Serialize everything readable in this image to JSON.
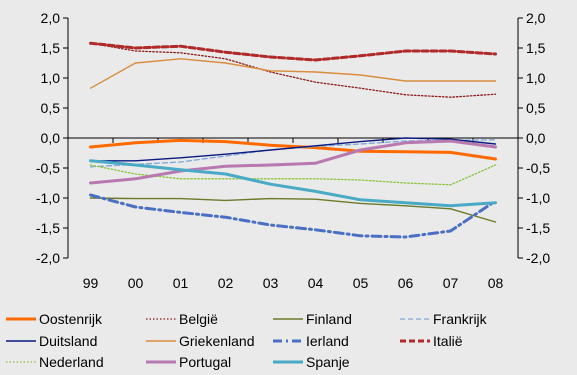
{
  "chart_data": {
    "type": "line",
    "title": "",
    "xlabel": "",
    "ylabel": "",
    "categories": [
      "99",
      "00",
      "01",
      "02",
      "03",
      "04",
      "05",
      "06",
      "07",
      "08"
    ],
    "ylim": [
      -2.0,
      2.0
    ],
    "yticks": [
      "2,0",
      "1,5",
      "1,0",
      "0,5",
      "0,0",
      "-0,5",
      "-1,0",
      "-1,5",
      "-2,0"
    ],
    "ytick_values": [
      2.0,
      1.5,
      1.0,
      0.5,
      0.0,
      -0.5,
      -1.0,
      -1.5,
      -2.0
    ],
    "grid": false,
    "legend_position": "bottom",
    "series": [
      {
        "name": "Oostenrijk",
        "color": "#ff6a00",
        "style": "solid-thick",
        "values": [
          -0.15,
          -0.08,
          -0.04,
          -0.06,
          -0.12,
          -0.16,
          -0.22,
          -0.23,
          -0.24,
          -0.35
        ]
      },
      {
        "name": "België",
        "color": "#8b1a1a",
        "style": "dotted",
        "values": [
          1.58,
          1.45,
          1.42,
          1.32,
          1.1,
          0.93,
          0.83,
          0.72,
          0.68,
          0.73
        ]
      },
      {
        "name": "Finland",
        "color": "#6b7a2a",
        "style": "solid",
        "values": [
          -1.0,
          -1.01,
          -1.01,
          -1.04,
          -1.01,
          -1.02,
          -1.09,
          -1.13,
          -1.18,
          -1.4
        ]
      },
      {
        "name": "Frankrijk",
        "color": "#7ea6d8",
        "style": "dashed",
        "values": [
          -0.48,
          -0.44,
          -0.4,
          -0.3,
          -0.2,
          -0.14,
          -0.1,
          -0.05,
          -0.04,
          -0.03
        ]
      },
      {
        "name": "Duitsland",
        "color": "#0a1a80",
        "style": "solid",
        "values": [
          -0.38,
          -0.38,
          -0.33,
          -0.27,
          -0.2,
          -0.13,
          -0.06,
          0.0,
          -0.02,
          -0.1
        ]
      },
      {
        "name": "Griekenland",
        "color": "#d98c3c",
        "style": "solid",
        "values": [
          0.83,
          1.25,
          1.32,
          1.25,
          1.12,
          1.1,
          1.05,
          0.95,
          0.95,
          0.95
        ]
      },
      {
        "name": "Ierland",
        "color": "#4a6fc4",
        "style": "dashdot",
        "values": [
          -0.95,
          -1.15,
          -1.24,
          -1.32,
          -1.45,
          -1.53,
          -1.63,
          -1.65,
          -1.55,
          -1.05
        ]
      },
      {
        "name": "Italië",
        "color": "#b02a2a",
        "style": "dashed-thick",
        "values": [
          1.58,
          1.5,
          1.53,
          1.43,
          1.35,
          1.3,
          1.37,
          1.45,
          1.45,
          1.4
        ]
      },
      {
        "name": "Nederland",
        "color": "#8ac43a",
        "style": "dotted",
        "values": [
          -0.45,
          -0.6,
          -0.68,
          -0.68,
          -0.68,
          -0.68,
          -0.7,
          -0.75,
          -0.78,
          -0.45
        ]
      },
      {
        "name": "Portugal",
        "color": "#b878b0",
        "style": "solid-thick",
        "values": [
          -0.75,
          -0.68,
          -0.55,
          -0.47,
          -0.45,
          -0.42,
          -0.2,
          -0.08,
          -0.05,
          -0.15
        ]
      },
      {
        "name": "Spanje",
        "color": "#4aaac6",
        "style": "solid-thick",
        "values": [
          -0.38,
          -0.45,
          -0.53,
          -0.6,
          -0.77,
          -0.89,
          -1.03,
          -1.08,
          -1.13,
          -1.08
        ]
      }
    ]
  }
}
